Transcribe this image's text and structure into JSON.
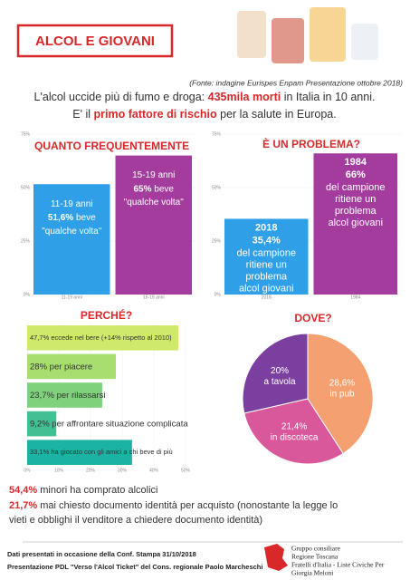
{
  "header": {
    "title": "ALCOL E GIOVANI",
    "source": "(Fonte: indagine Eurispes Enpam Presentazione ottobre 2018)"
  },
  "intro": [
    [
      "L'alcol uccide più di fumo e droga: ",
      "435mila morti",
      " in Italia in 10 anni."
    ],
    [
      "E' il ",
      "primo fattore di rischio",
      " per la salute in Europa."
    ]
  ],
  "chart_data": [
    {
      "type": "bar",
      "title": "QUANTO FREQUENTEMENTE",
      "categories": [
        "11-19 anni",
        "15-19 anni"
      ],
      "values": [
        51.6,
        65
      ],
      "value_labels": [
        "51,6%",
        "65%"
      ],
      "suffix": "beve",
      "note": "\"qualche volta\"",
      "colors": [
        "#2f9fe8",
        "#a43c9e"
      ],
      "ylim": [
        0,
        75
      ],
      "yticks": [
        {
          "value": 0,
          "label": "0%"
        },
        {
          "value": 25,
          "label": "25%"
        },
        {
          "value": 50,
          "label": "50%"
        },
        {
          "value": 75,
          "label": "75%"
        }
      ]
    },
    {
      "type": "bar",
      "title": "È UN PROBLEMA?",
      "categories": [
        "2018",
        "1984"
      ],
      "values": [
        35.4,
        66
      ],
      "value_labels": [
        "35,4%",
        "66%"
      ],
      "note_lines": [
        "del campione",
        "ritiene un",
        "problema",
        "alcol giovani"
      ],
      "colors": [
        "#2f9fe8",
        "#a43c9e"
      ],
      "ylim": [
        0,
        75
      ],
      "yticks": [
        {
          "value": 0,
          "label": "0%"
        },
        {
          "value": 25,
          "label": "25%"
        },
        {
          "value": 50,
          "label": "50%"
        },
        {
          "value": 75,
          "label": "75%"
        }
      ]
    },
    {
      "type": "hbar",
      "title": "PERCHÉ?",
      "categories": [
        "eccede nel bere (+14% rispetto al 2010)",
        "per piacere",
        "per rilassarsi",
        "per affrontare situazione complicata",
        "ha giocato con gli amici a chi beve di più"
      ],
      "values": [
        47.7,
        28,
        23.7,
        9.2,
        33.1
      ],
      "value_labels": [
        "47,7%",
        "28%",
        "23,7%",
        "9,2%",
        "33,1%"
      ],
      "colors": [
        "#cfe96b",
        "#a8de70",
        "#80d17c",
        "#43bf94",
        "#1bb4a4"
      ],
      "xlim": [
        0,
        50
      ],
      "xticks": [
        {
          "value": 0,
          "label": "0%"
        },
        {
          "value": 10,
          "label": "10%"
        },
        {
          "value": 20,
          "label": "20%"
        },
        {
          "value": 30,
          "label": "30%"
        },
        {
          "value": 40,
          "label": "40%"
        },
        {
          "value": 50,
          "label": "50%"
        }
      ]
    },
    {
      "type": "pie",
      "title": "DOVE?",
      "categories": [
        "in pub",
        "in discoteca",
        "a tavola"
      ],
      "values": [
        28.6,
        21.4,
        20
      ],
      "value_labels": [
        "28,6%",
        "21,4%",
        "20%"
      ],
      "colors": [
        "#f5a070",
        "#d9589b",
        "#7b3f9f"
      ]
    }
  ],
  "stats": [
    [
      "54,4%",
      " minori ha comprato alcolici"
    ],
    [
      "21,7%",
      " mai chiesto documento identità per acquisto (nonostante la legge lo",
      "vieti e obblighi il venditore a chiedere documento identità)"
    ]
  ],
  "footer": {
    "lines": [
      "Dati presentati in occasione della Conf. Stampa 31/10/2018",
      "Presentazione PDL \"Verso l'Alcol Ticket\" del Cons. regionale Paolo Marcheschi"
    ],
    "logo": [
      "Gruppo consiliare",
      "Regione Toscana",
      "Fratelli d'Italia - Liste Civiche Per",
      "Giorgia Meloni"
    ]
  }
}
